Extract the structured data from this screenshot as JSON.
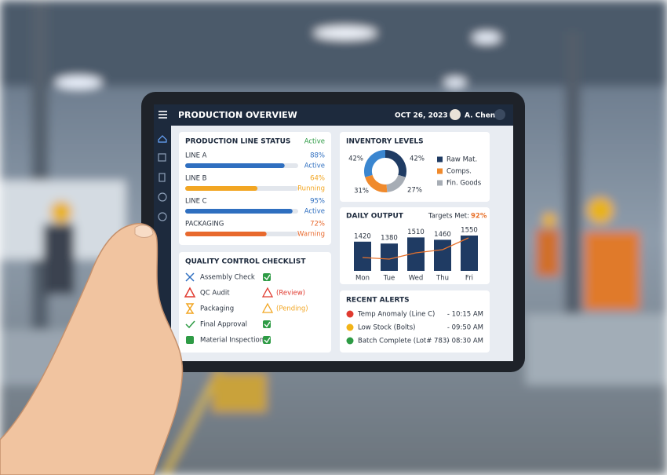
{
  "header": {
    "title": "PRODUCTION OVERVIEW",
    "date": "OCT 26, 2023",
    "user": "A. Chen"
  },
  "line_status": {
    "title": "PRODUCTION LINE STATUS",
    "status": "Active",
    "lines": [
      {
        "name": "LINE A",
        "percent": {
          "value": 88,
          "label": "88%"
        },
        "state": "Active",
        "color": "#2f6fc0"
      },
      {
        "name": "LINE B",
        "percent": {
          "value": 64,
          "label": "64%"
        },
        "state": "Running",
        "color": "#f2a623"
      },
      {
        "name": "LINE C",
        "percent": {
          "value": 95,
          "label": "95%"
        },
        "state": "Active",
        "color": "#2f6fc0"
      },
      {
        "name": "PACKAGING",
        "percent": {
          "value": 72,
          "label": "72%"
        },
        "state": "Warning",
        "color": "#e8692d"
      }
    ]
  },
  "quality": {
    "title": "QUALITY CONTROL CHECKLIST",
    "items": [
      {
        "name": "Assembly Check"
      },
      {
        "name": "QC Audit",
        "note": "(Review)"
      },
      {
        "name": "Packaging",
        "note": "(Pending)"
      },
      {
        "name": "Final Approval"
      },
      {
        "name": "Material Inspection"
      }
    ]
  },
  "inventory": {
    "title": "INVENTORY LEVELS",
    "segments": [
      {
        "value": 42,
        "label": "42%",
        "color": "#1f3b63"
      },
      {
        "value": 27,
        "label": "27%",
        "color": "#a7adb5"
      },
      {
        "value": 31,
        "label": "31%",
        "color": "#f08a2c"
      },
      {
        "value": 42,
        "label": "42%",
        "color": "#3a86d0"
      }
    ],
    "legend": [
      {
        "name": "Raw Mat.",
        "color": "#1f3b63"
      },
      {
        "name": "Comps.",
        "color": "#f08a2c"
      },
      {
        "name": "Fin. Goods",
        "color": "#a7adb5"
      }
    ]
  },
  "output": {
    "title": "DAILY OUTPUT",
    "target_label": "Targets Met:",
    "target_value": "92%",
    "categories": [
      "Mon",
      "Tue",
      "Wed",
      "Thu",
      "Fri"
    ],
    "values": [
      1420,
      1380,
      1510,
      1460,
      1550
    ],
    "ylim": [
      800,
      1600
    ],
    "color": "#1f3b63"
  },
  "alerts": {
    "title": "RECENT ALERTS",
    "items": [
      {
        "text": "Temp Anomaly (Line C)",
        "time": "- 10:15 AM",
        "color": "#e03a2f"
      },
      {
        "text": "Low Stock (Bolts)",
        "time": "- 09:50 AM",
        "color": "#f2b418"
      },
      {
        "text": "Batch Complete (Lot# 783)",
        "time": "- 08:30 AM",
        "color": "#2e9b45"
      }
    ]
  }
}
